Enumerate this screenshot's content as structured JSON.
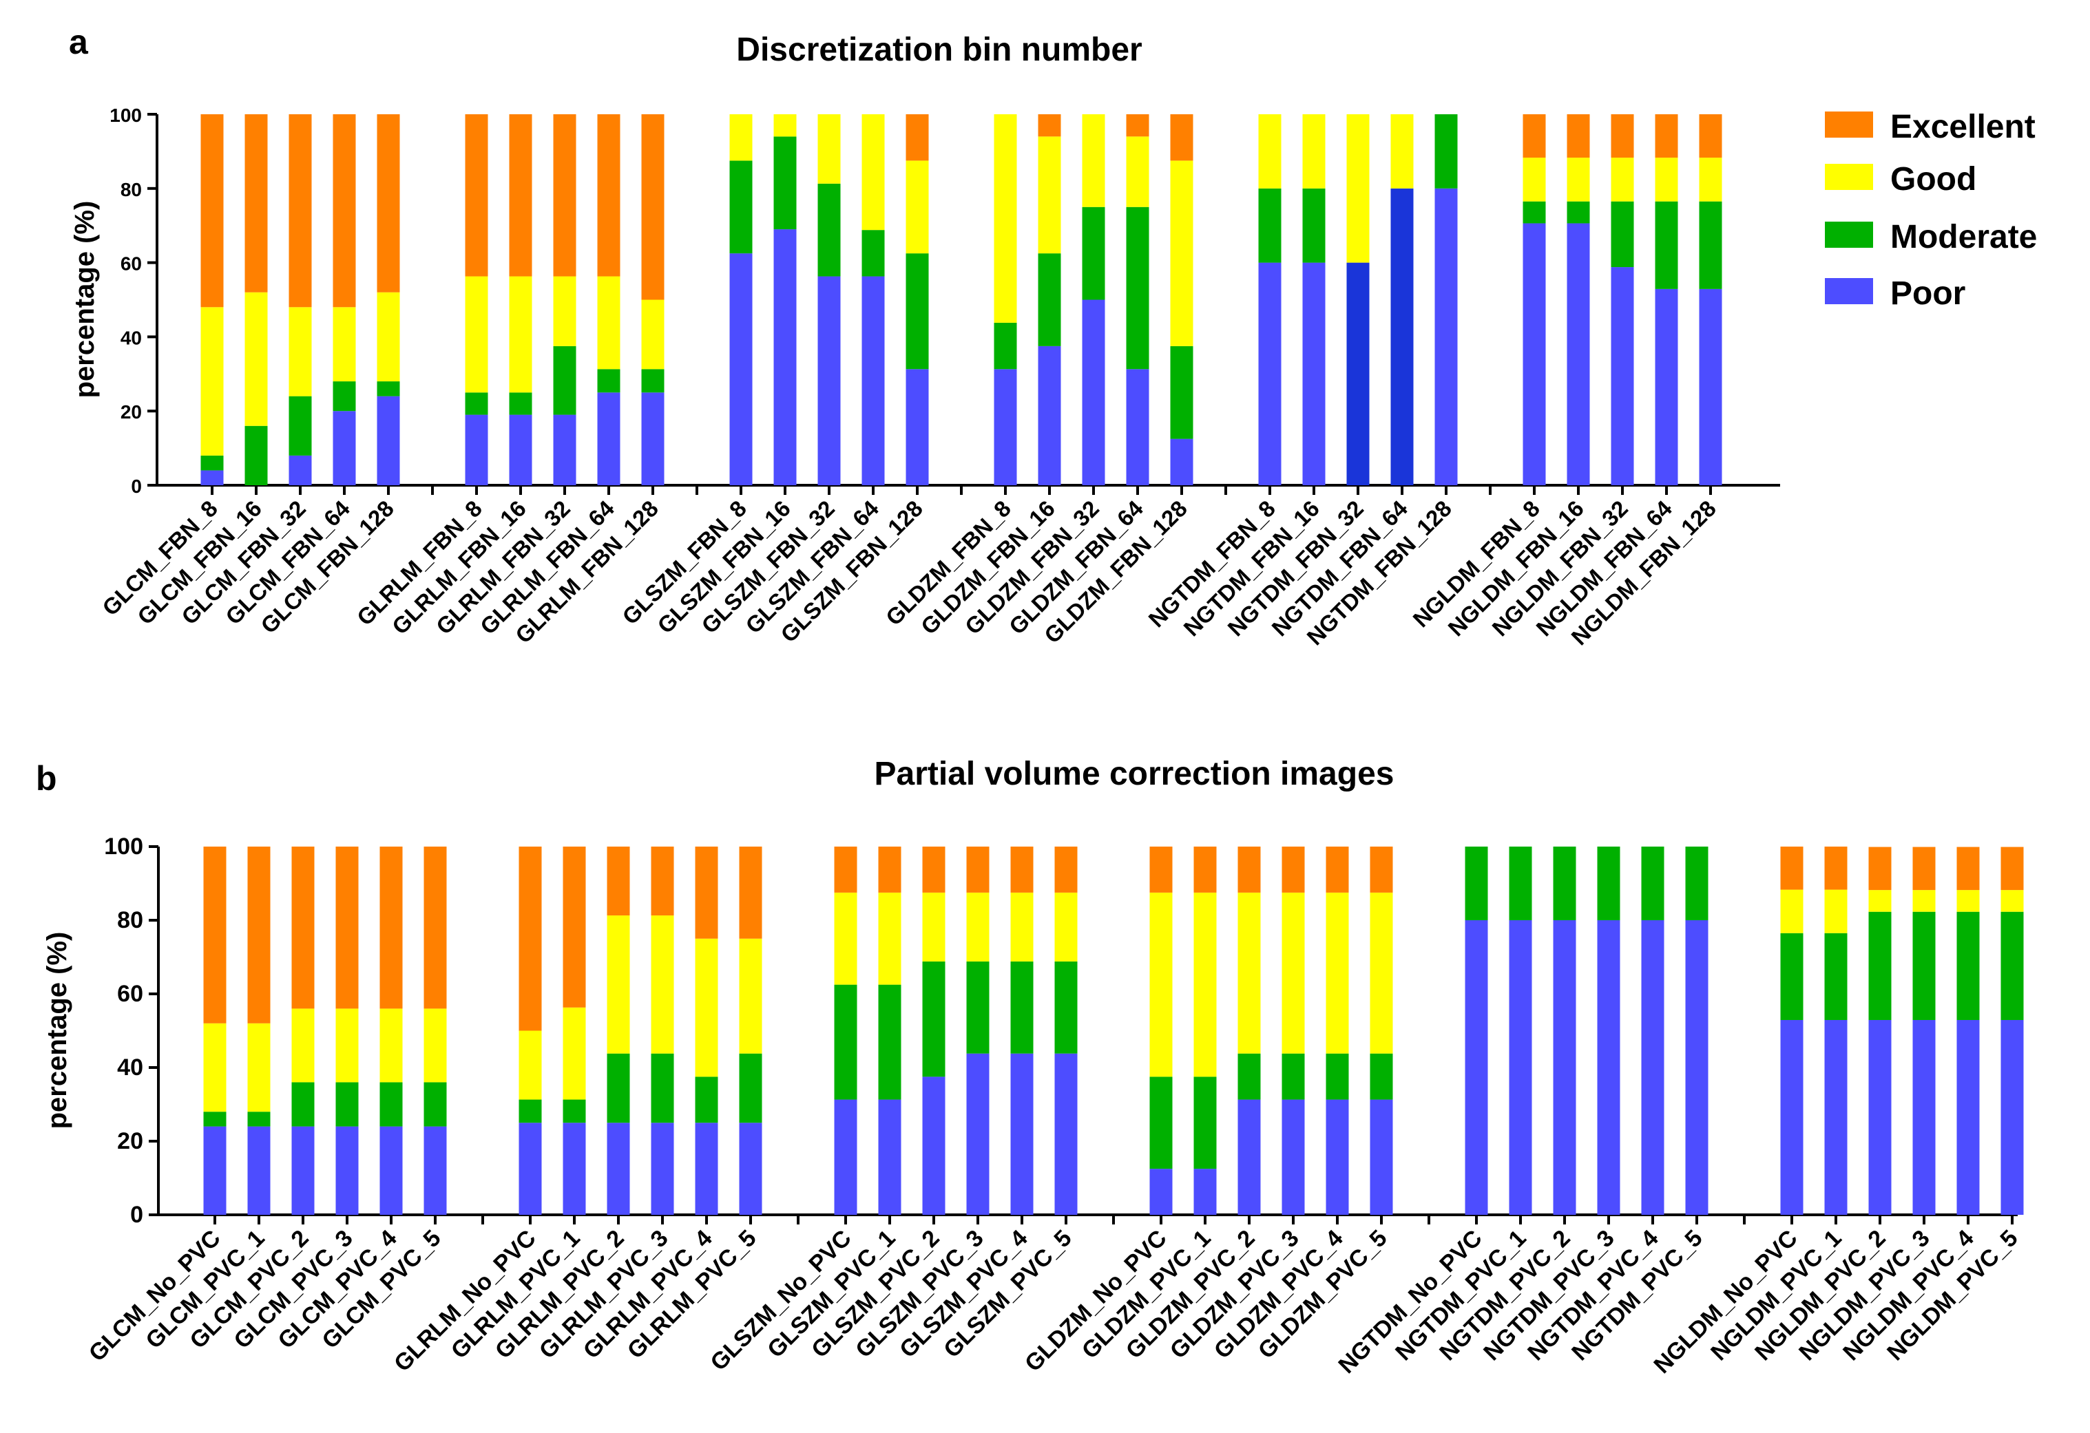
{
  "colors": {
    "Excellent": "#ff8000",
    "Good": "#ffff00",
    "Moderate": "#00b000",
    "Poor": "#4d4dff",
    "Poor_dark": "#1a35d9"
  },
  "legend": [
    "Excellent",
    "Good",
    "Moderate",
    "Poor"
  ],
  "chart_data": [
    {
      "panel": "a",
      "type": "bar",
      "stacked": true,
      "title": "Discretization bin number",
      "ylabel": "percentage (%)",
      "ylim": [
        0,
        100
      ],
      "yticks": [
        0,
        20,
        40,
        60,
        80,
        100
      ],
      "categories": [
        "GLCM_FBN_8",
        "GLCM_FBN_16",
        "GLCM_FBN_32",
        "GLCM_FBN_64",
        "GLCM_FBN_128",
        "GLRLM_FBN_8",
        "GLRLM_FBN_16",
        "GLRLM_FBN_32",
        "GLRLM_FBN_64",
        "GLRLM_FBN_128",
        "GLSZM_FBN_8",
        "GLSZM_FBN_16",
        "GLSZM_FBN_32",
        "GLSZM_FBN_64",
        "GLSZM_FBN_128",
        "GLDZM_FBN_8",
        "GLDZM_FBN_16",
        "GLDZM_FBN_32",
        "GLDZM_FBN_64",
        "GLDZM_FBN_128",
        "NGTDM_FBN_8",
        "NGTDM_FBN_16",
        "NGTDM_FBN_32",
        "NGTDM_FBN_64",
        "NGTDM_FBN_128",
        "NGLDM_FBN_8",
        "NGLDM_FBN_16",
        "NGLDM_FBN_32",
        "NGLDM_FBN_64",
        "NGLDM_FBN_128"
      ],
      "group_size": 5,
      "dark_poor_indices": [
        22,
        23
      ],
      "series": [
        {
          "name": "Poor",
          "values": [
            4,
            0,
            8,
            20,
            24,
            19,
            19,
            19,
            25,
            25,
            62.5,
            69,
            56.3,
            56.3,
            31.3,
            31.3,
            37.5,
            50,
            31.3,
            12.5,
            60,
            60,
            60,
            80,
            80,
            70.6,
            70.6,
            58.8,
            52.9,
            52.9
          ]
        },
        {
          "name": "Moderate",
          "values": [
            4,
            16,
            16,
            8,
            4,
            6,
            6,
            18.5,
            6.3,
            6.3,
            25,
            25,
            25,
            12.5,
            31.2,
            12.5,
            25,
            25,
            43.7,
            25,
            20,
            20,
            0,
            0,
            20,
            5.9,
            5.9,
            17.7,
            23.6,
            23.6
          ]
        },
        {
          "name": "Good",
          "values": [
            40,
            36,
            24,
            20,
            24,
            31.3,
            31.3,
            18.8,
            25,
            18.7,
            12.5,
            6,
            18.7,
            31.2,
            25,
            56.2,
            31.5,
            25,
            19,
            50,
            20,
            20,
            40,
            20,
            0,
            11.8,
            11.8,
            11.8,
            11.8,
            11.8
          ]
        },
        {
          "name": "Excellent",
          "values": [
            52,
            48,
            52,
            52,
            48,
            43.7,
            43.7,
            43.7,
            43.7,
            50,
            0,
            0,
            0,
            0,
            12.5,
            0,
            6,
            0,
            6,
            12.5,
            0,
            0,
            0,
            0,
            0,
            11.7,
            11.7,
            11.7,
            11.7,
            11.7
          ]
        }
      ]
    },
    {
      "panel": "b",
      "type": "bar",
      "stacked": true,
      "title": "Partial volume correction images",
      "ylabel": "percentage (%)",
      "ylim": [
        0,
        100
      ],
      "yticks": [
        0,
        20,
        40,
        60,
        80,
        100
      ],
      "categories": [
        "GLCM_No_PVC",
        "GLCM_PVC_1",
        "GLCM_PVC_2",
        "GLCM_PVC_3",
        "GLCM_PVC_4",
        "GLCM_PVC_5",
        "GLRLM_No_PVC",
        "GLRLM_PVC_1",
        "GLRLM_PVC_2",
        "GLRLM_PVC_3",
        "GLRLM_PVC_4",
        "GLRLM_PVC_5",
        "GLSZM_No_PVC",
        "GLSZM_PVC_1",
        "GLSZM_PVC_2",
        "GLSZM_PVC_3",
        "GLSZM_PVC_4",
        "GLSZM_PVC_5",
        "GLDZM_No_PVC",
        "GLDZM_PVC_1",
        "GLDZM_PVC_2",
        "GLDZM_PVC_3",
        "GLDZM_PVC_4",
        "GLDZM_PVC_5",
        "NGTDM_No_PVC",
        "NGTDM_PVC_1",
        "NGTDM_PVC_2",
        "NGTDM_PVC_3",
        "NGTDM_PVC_4",
        "NGTDM_PVC_5",
        "NGLDM_No_PVC",
        "NGLDM_PVC_1",
        "NGLDM_PVC_2",
        "NGLDM_PVC_3",
        "NGLDM_PVC_4",
        "NGLDM_PVC_5"
      ],
      "group_size": 6,
      "dark_poor_indices": [],
      "series": [
        {
          "name": "Poor",
          "values": [
            24,
            24,
            24,
            24,
            24,
            24,
            25,
            25,
            25,
            25,
            25,
            25,
            31.3,
            31.3,
            37.5,
            43.8,
            43.8,
            43.8,
            12.5,
            12.5,
            31.3,
            31.3,
            31.3,
            31.3,
            80,
            80,
            80,
            80,
            80,
            80,
            52.9,
            52.9,
            52.9,
            52.9,
            52.9,
            52.9
          ]
        },
        {
          "name": "Moderate",
          "values": [
            4,
            4,
            12,
            12,
            12,
            12,
            6.3,
            6.3,
            18.8,
            18.8,
            12.5,
            18.8,
            31.2,
            31.2,
            31.3,
            25,
            25,
            25,
            25,
            25,
            12.5,
            12.5,
            12.5,
            12.5,
            20,
            20,
            20,
            20,
            20,
            20,
            23.6,
            23.6,
            29.4,
            29.4,
            29.4,
            29.4
          ]
        },
        {
          "name": "Good",
          "values": [
            24,
            24,
            20,
            20,
            20,
            20,
            18.7,
            25,
            37.5,
            37.5,
            37.5,
            31.2,
            25,
            25,
            18.7,
            18.7,
            18.7,
            18.7,
            50,
            50,
            43.7,
            43.7,
            43.7,
            43.7,
            0,
            0,
            0,
            0,
            0,
            0,
            11.8,
            11.8,
            5.9,
            5.9,
            5.9,
            5.9
          ]
        },
        {
          "name": "Excellent",
          "values": [
            48,
            48,
            44,
            44,
            44,
            44,
            50,
            43.7,
            18.7,
            18.7,
            25,
            25,
            12.5,
            12.5,
            12.5,
            12.5,
            12.5,
            12.5,
            12.5,
            12.5,
            12.5,
            12.5,
            12.5,
            12.5,
            0,
            0,
            0,
            0,
            0,
            0,
            11.7,
            11.7,
            11.7,
            11.7,
            11.7,
            11.7
          ]
        }
      ]
    }
  ]
}
